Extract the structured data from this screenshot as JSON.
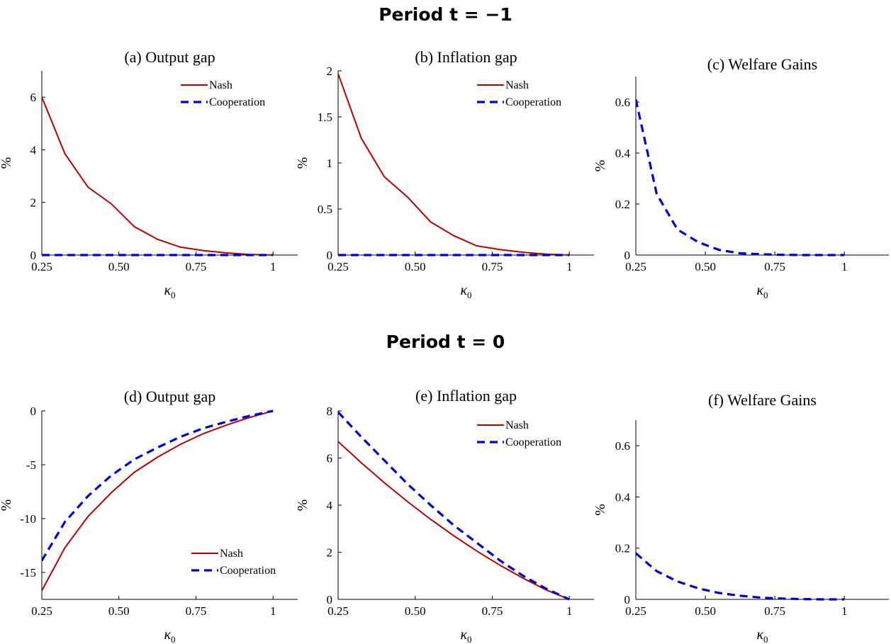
{
  "page": {
    "top_heading": "Period t = −1",
    "bottom_heading": "Period t = 0"
  },
  "chart_data": [
    {
      "type": "line",
      "title": "(a) Output gap",
      "xlabel": "κ0",
      "ylabel": "%",
      "xlim": [
        0.25,
        1.08
      ],
      "ylim": [
        0,
        7
      ],
      "xticks": [
        0.25,
        0.5,
        0.75,
        1
      ],
      "xtick_labels": [
        "0.25",
        "0.50",
        "0.75",
        "1"
      ],
      "yticks": [
        0,
        2,
        4,
        6
      ],
      "ytick_labels": [
        "0",
        "2",
        "4",
        "6"
      ],
      "x": [
        0.25,
        0.325,
        0.4,
        0.475,
        0.55,
        0.625,
        0.7,
        0.775,
        0.85,
        0.925,
        1.0
      ],
      "series": [
        {
          "name": "Nash",
          "color": "#b30000",
          "style": "solid",
          "values": [
            6.0,
            3.85,
            2.58,
            1.95,
            1.08,
            0.6,
            0.3,
            0.17,
            0.08,
            0.02,
            0.0
          ]
        },
        {
          "name": "Cooperation",
          "color": "#0000cc",
          "style": "dashed",
          "values": [
            0,
            0,
            0,
            0,
            0,
            0,
            0,
            0,
            0,
            0,
            0
          ]
        }
      ],
      "legend": "top-right",
      "grid": false
    },
    {
      "type": "line",
      "title": "(b) Inflation gap",
      "xlabel": "κ0",
      "ylabel": "%",
      "xlim": [
        0.25,
        1.08
      ],
      "ylim": [
        0,
        2
      ],
      "xticks": [
        0.25,
        0.5,
        0.75,
        1
      ],
      "xtick_labels": [
        "0.25",
        "0.50",
        "0.75",
        "1"
      ],
      "yticks": [
        0,
        0.5,
        1,
        1.5,
        2
      ],
      "ytick_labels": [
        "0",
        "0.5",
        "1",
        "1.5",
        "2"
      ],
      "x": [
        0.25,
        0.325,
        0.4,
        0.475,
        0.55,
        0.625,
        0.7,
        0.775,
        0.85,
        0.925,
        1.0
      ],
      "series": [
        {
          "name": "Nash",
          "color": "#b30000",
          "style": "solid",
          "values": [
            1.97,
            1.27,
            0.85,
            0.63,
            0.36,
            0.21,
            0.1,
            0.06,
            0.03,
            0.01,
            0.0
          ]
        },
        {
          "name": "Cooperation",
          "color": "#0000cc",
          "style": "dashed",
          "values": [
            0,
            0,
            0,
            0,
            0,
            0,
            0,
            0,
            0,
            0,
            0
          ]
        }
      ],
      "legend": "top-right",
      "grid": false
    },
    {
      "type": "line",
      "title": "(c) Welfare Gains",
      "xlabel": "κ0",
      "ylabel": "%",
      "xlim": [
        0.25,
        1.16
      ],
      "ylim": [
        0,
        0.7
      ],
      "xticks": [
        0.25,
        0.5,
        0.75,
        1
      ],
      "xtick_labels": [
        "0.25",
        "0.50",
        "0.75",
        "1"
      ],
      "yticks": [
        0,
        0.2,
        0.4,
        0.6
      ],
      "ytick_labels": [
        "0",
        "0.2",
        "0.4",
        "0.6"
      ],
      "x": [
        0.25,
        0.325,
        0.4,
        0.475,
        0.55,
        0.625,
        0.7,
        0.775,
        0.85,
        0.925,
        1.0
      ],
      "series": [
        {
          "name": "Cooperation",
          "color": "#0000cc",
          "style": "dashed",
          "values": [
            0.61,
            0.24,
            0.1,
            0.05,
            0.02,
            0.007,
            0.003,
            0.001,
            0.0,
            0.0,
            0.0
          ]
        }
      ],
      "grid": false
    },
    {
      "type": "line",
      "title": "(d) Output gap",
      "xlabel": "κ0",
      "ylabel": "%",
      "xlim": [
        0.25,
        1.08
      ],
      "ylim": [
        -17.5,
        0
      ],
      "xticks": [
        0.25,
        0.5,
        0.75,
        1
      ],
      "xtick_labels": [
        "0.25",
        "0.50",
        "0.75",
        "1"
      ],
      "yticks": [
        -15,
        -10,
        -5,
        0
      ],
      "ytick_labels": [
        "-15",
        "-10",
        "-5",
        "0"
      ],
      "x": [
        0.25,
        0.325,
        0.4,
        0.475,
        0.55,
        0.625,
        0.7,
        0.775,
        0.85,
        0.925,
        1.0
      ],
      "series": [
        {
          "name": "Nash",
          "color": "#b30000",
          "style": "solid",
          "values": [
            -16.7,
            -12.7,
            -9.8,
            -7.6,
            -5.7,
            -4.3,
            -3.1,
            -2.1,
            -1.3,
            -0.6,
            0.0
          ]
        },
        {
          "name": "Cooperation",
          "color": "#0000cc",
          "style": "dashed",
          "values": [
            -13.9,
            -10.3,
            -7.9,
            -6.0,
            -4.5,
            -3.4,
            -2.4,
            -1.6,
            -1.0,
            -0.45,
            0.0
          ]
        }
      ],
      "legend": "bottom-right",
      "grid": false
    },
    {
      "type": "line",
      "title": "(e) Inflation gap",
      "xlabel": "κ0",
      "ylabel": "%",
      "xlim": [
        0.25,
        1.08
      ],
      "ylim": [
        0,
        8
      ],
      "xticks": [
        0.25,
        0.5,
        0.75,
        1
      ],
      "xtick_labels": [
        "0.25",
        "0.50",
        "0.75",
        "1"
      ],
      "yticks": [
        0,
        2,
        4,
        6,
        8
      ],
      "ytick_labels": [
        "0",
        "2",
        "4",
        "6",
        "8"
      ],
      "x": [
        0.25,
        0.325,
        0.4,
        0.475,
        0.55,
        0.625,
        0.7,
        0.775,
        0.85,
        0.925,
        1.0
      ],
      "series": [
        {
          "name": "Nash",
          "color": "#b30000",
          "style": "solid",
          "values": [
            6.7,
            5.8,
            4.95,
            4.15,
            3.4,
            2.7,
            2.05,
            1.45,
            0.9,
            0.4,
            0.0
          ]
        },
        {
          "name": "Cooperation",
          "color": "#0000cc",
          "style": "dashed",
          "values": [
            7.95,
            6.9,
            5.9,
            4.9,
            4.0,
            3.15,
            2.4,
            1.65,
            1.0,
            0.45,
            0.0
          ]
        }
      ],
      "legend": "top-right",
      "grid": false
    },
    {
      "type": "line",
      "title": "(f) Welfare Gains",
      "xlabel": "κ0",
      "ylabel": "%",
      "xlim": [
        0.25,
        1.16
      ],
      "ylim": [
        0,
        0.7
      ],
      "xticks": [
        0.25,
        0.5,
        0.75,
        1
      ],
      "xtick_labels": [
        "0.25",
        "0.50",
        "0.75",
        "1"
      ],
      "yticks": [
        0,
        0.2,
        0.4,
        0.6
      ],
      "ytick_labels": [
        "0",
        "0.2",
        "0.4",
        "0.6"
      ],
      "x": [
        0.25,
        0.325,
        0.4,
        0.475,
        0.55,
        0.625,
        0.7,
        0.775,
        0.85,
        0.925,
        1.0
      ],
      "series": [
        {
          "name": "Cooperation",
          "color": "#0000cc",
          "style": "dashed",
          "values": [
            0.18,
            0.11,
            0.07,
            0.043,
            0.025,
            0.014,
            0.007,
            0.003,
            0.001,
            0.0,
            0.0
          ]
        }
      ],
      "grid": false
    }
  ]
}
